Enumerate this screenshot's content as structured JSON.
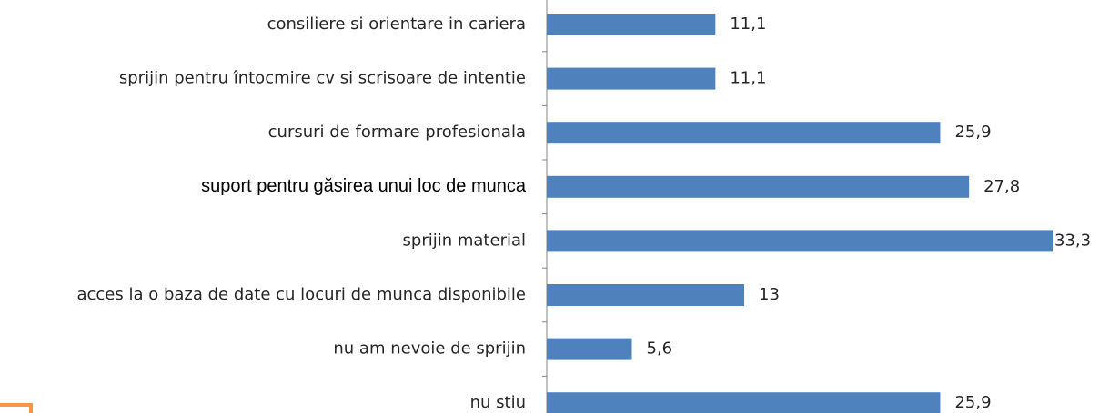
{
  "chart_data": {
    "type": "bar",
    "orientation": "horizontal",
    "categories": [
      "consiliere si orientare in cariera",
      "sprijin pentru întocmire cv si scrisoare de intentie",
      "cursuri de formare profesionala",
      "suport pentru găsirea unui loc de munca",
      "sprijin material",
      "acces la o baza de date cu locuri de munca disponibile",
      "nu am nevoie de sprijin",
      "nu stiu"
    ],
    "values": [
      11.1,
      11.1,
      25.9,
      27.8,
      33.3,
      13,
      5.6,
      25.9
    ],
    "value_labels": [
      "11,1",
      "11,1",
      "25,9",
      "27,8",
      "33,3",
      "13",
      "5,6",
      "25,9"
    ],
    "color": "#4f81bd"
  }
}
